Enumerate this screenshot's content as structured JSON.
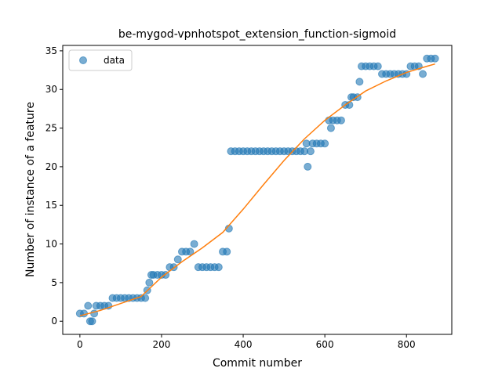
{
  "chart_data": {
    "type": "scatter",
    "title": "be-mygod-vpnhotspot_extension_function-sigmoid",
    "x_label": "Commit number",
    "y_label": "Number of instance of a feature",
    "xlim": [
      -42,
      911
    ],
    "ylim": [
      -1.7,
      35.7
    ],
    "xticks": [
      0,
      200,
      400,
      600,
      800
    ],
    "yticks": [
      0,
      5,
      10,
      15,
      20,
      25,
      30,
      35
    ],
    "legend": "upper left",
    "series": [
      {
        "name": "data",
        "type": "scatter",
        "color": "#1f77b4",
        "x": [
          0,
          10,
          20,
          25,
          30,
          35,
          40,
          50,
          60,
          70,
          80,
          90,
          100,
          110,
          120,
          130,
          140,
          150,
          160,
          165,
          170,
          175,
          180,
          190,
          200,
          210,
          220,
          230,
          240,
          250,
          260,
          270,
          280,
          290,
          300,
          310,
          320,
          330,
          340,
          350,
          360,
          365,
          370,
          380,
          390,
          400,
          410,
          420,
          430,
          440,
          450,
          460,
          470,
          480,
          490,
          500,
          510,
          520,
          530,
          540,
          550,
          555,
          558,
          565,
          570,
          580,
          590,
          600,
          610,
          615,
          620,
          630,
          640,
          650,
          660,
          665,
          670,
          680,
          685,
          690,
          700,
          710,
          720,
          730,
          740,
          750,
          760,
          770,
          780,
          790,
          800,
          810,
          820,
          830,
          840,
          850,
          860,
          870
        ],
        "values": [
          1,
          1,
          2,
          0,
          0,
          1,
          2,
          2,
          2,
          2,
          3,
          3,
          3,
          3,
          3,
          3,
          3,
          3,
          3,
          4,
          5,
          6,
          6,
          6,
          6,
          6,
          7,
          7,
          8,
          9,
          9,
          9,
          10,
          7,
          7,
          7,
          7,
          7,
          7,
          9,
          9,
          12,
          22,
          22,
          22,
          22,
          22,
          22,
          22,
          22,
          22,
          22,
          22,
          22,
          22,
          22,
          22,
          22,
          22,
          22,
          22,
          23,
          20,
          22,
          23,
          23,
          23,
          23,
          26,
          25,
          26,
          26,
          26,
          28,
          28,
          29,
          29,
          29,
          31,
          33,
          33,
          33,
          33,
          33,
          32,
          32,
          32,
          32,
          32,
          32,
          32,
          33,
          33,
          33,
          32,
          34,
          34,
          34
        ]
      },
      {
        "type": "line",
        "color": "#ff7f0e",
        "x": [
          0,
          50,
          100,
          150,
          200,
          250,
          300,
          350,
          400,
          450,
          500,
          550,
          600,
          650,
          700,
          750,
          800,
          850,
          870
        ],
        "values": [
          0.7,
          1.4,
          2.3,
          3.2,
          5.7,
          7.7,
          9.5,
          11.5,
          14.5,
          17.7,
          20.8,
          23.6,
          26,
          28,
          29.8,
          31.1,
          32.2,
          33,
          33.3
        ]
      }
    ]
  }
}
